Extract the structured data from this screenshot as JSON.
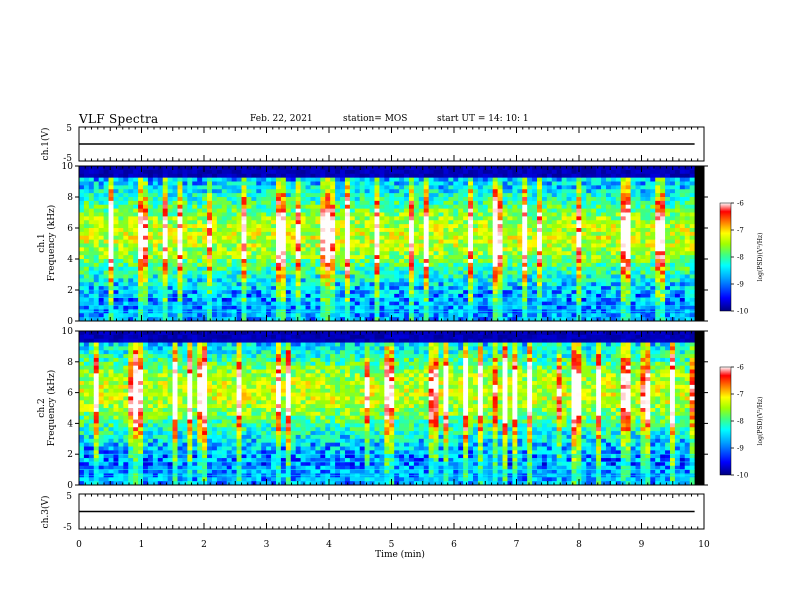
{
  "header": {
    "title": "VLF Spectra",
    "date": "Feb. 22, 2021",
    "station": "station= MOS",
    "start": "start  UT =   14: 10: 1"
  },
  "chart_data": [
    {
      "type": "line",
      "panel": "ch1-waveform",
      "ylabel": "ch.1(V)",
      "ylim": [
        -5,
        5
      ],
      "yticks": [
        "5",
        "-5"
      ],
      "series": [
        {
          "x": [
            0,
            9.85
          ],
          "values": [
            0,
            0
          ]
        }
      ]
    },
    {
      "type": "heatmap",
      "panel": "ch1-spectrogram",
      "ylabel": "ch.1\nFrequency (kHz)",
      "ylabel_line1": "ch.1",
      "ylabel_line2": "Frequency (kHz)",
      "ylim": [
        0,
        10
      ],
      "yticks": [
        "0",
        "2",
        "4",
        "6",
        "8",
        "10"
      ],
      "colorbar": {
        "label": "log(PSD)(V²/Hz)",
        "range": [
          -10,
          -6
        ],
        "ticks": [
          "-6",
          "-7",
          "-8",
          "-9",
          "-10"
        ]
      }
    },
    {
      "type": "heatmap",
      "panel": "ch2-spectrogram",
      "ylabel": "ch.2\nFrequency (kHz)",
      "ylabel_line1": "ch.2",
      "ylabel_line2": "Frequency (kHz)",
      "ylim": [
        0,
        10
      ],
      "yticks": [
        "0",
        "2",
        "4",
        "6",
        "8",
        "10"
      ],
      "colorbar": {
        "label": "log(PSD)(V²/Hz)",
        "range": [
          -10,
          -6
        ],
        "ticks": [
          "-6",
          "-7",
          "-8",
          "-9",
          "-10"
        ]
      }
    },
    {
      "type": "line",
      "panel": "ch3-waveform",
      "ylabel": "ch.3(V)",
      "ylim": [
        -5,
        5
      ],
      "yticks": [
        "5",
        "-5"
      ],
      "series": [
        {
          "x": [
            0,
            9.85
          ],
          "values": [
            0,
            0
          ]
        }
      ]
    }
  ],
  "x_axis": {
    "label": "Time  (min)",
    "range": [
      0,
      10
    ],
    "ticks": [
      "0",
      "1",
      "2",
      "3",
      "4",
      "5",
      "6",
      "7",
      "8",
      "9",
      "10"
    ]
  },
  "colors": {
    "background": "#ffffff",
    "axis": "#000000",
    "colormap": [
      "#000080",
      "#0000ff",
      "#00a0ff",
      "#00ffff",
      "#40ff80",
      "#a0ff00",
      "#ffff00",
      "#ff8000",
      "#ff0000",
      "#ffffff"
    ]
  }
}
